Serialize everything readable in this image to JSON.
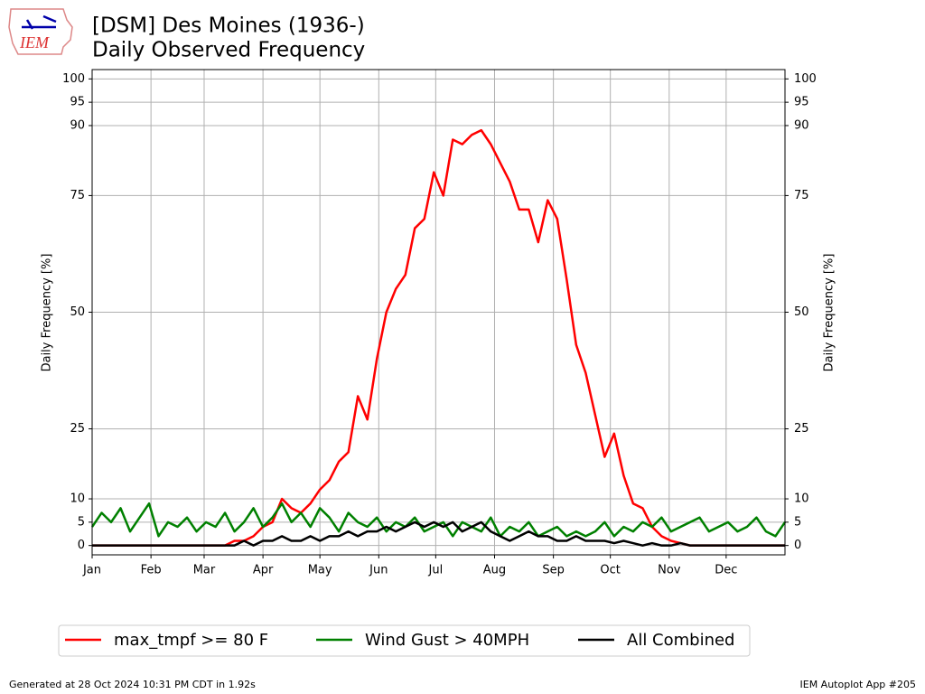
{
  "logo_text": "IEM",
  "footer": {
    "left": "Generated at 28 Oct 2024 10:31 PM CDT in 1.92s",
    "right": "IEM Autoplot App #205"
  },
  "chart_data": {
    "type": "line",
    "title": "[DSM] Des Moines (1936-)",
    "subtitle": "Daily Observed Frequency",
    "ylabel": "Daily Frequency [%]",
    "y2label": "Daily Frequency [%]",
    "x": [
      1,
      6,
      11,
      16,
      21,
      26,
      31,
      36,
      41,
      46,
      51,
      56,
      61,
      66,
      71,
      76,
      81,
      86,
      91,
      96,
      101,
      106,
      111,
      116,
      121,
      126,
      131,
      136,
      141,
      146,
      151,
      156,
      161,
      166,
      171,
      176,
      181,
      186,
      191,
      196,
      201,
      206,
      211,
      216,
      221,
      226,
      231,
      236,
      241,
      246,
      251,
      256,
      261,
      266,
      271,
      276,
      281,
      286,
      291,
      296,
      301,
      306,
      311,
      316,
      321,
      326,
      331,
      336,
      341,
      346,
      351,
      356,
      361,
      366
    ],
    "xlim": [
      1,
      366
    ],
    "xticks": [
      {
        "value": 1,
        "label": "Jan"
      },
      {
        "value": 32,
        "label": "Feb"
      },
      {
        "value": 60,
        "label": "Mar"
      },
      {
        "value": 91,
        "label": "Apr"
      },
      {
        "value": 121,
        "label": "May"
      },
      {
        "value": 152,
        "label": "Jun"
      },
      {
        "value": 182,
        "label": "Jul"
      },
      {
        "value": 213,
        "label": "Aug"
      },
      {
        "value": 244,
        "label": "Sep"
      },
      {
        "value": 274,
        "label": "Oct"
      },
      {
        "value": 305,
        "label": "Nov"
      },
      {
        "value": 335,
        "label": "Dec"
      }
    ],
    "ylim": [
      -2,
      102
    ],
    "yticks": [
      0,
      5,
      10,
      25,
      50,
      75,
      90,
      95,
      100
    ],
    "y2lim": [
      -2,
      102
    ],
    "y2ticks": [
      0,
      5,
      10,
      25,
      50,
      75,
      90,
      95,
      100
    ],
    "grid": true,
    "legend": "bottom",
    "series": [
      {
        "name": "max_tmpf >= 80 F",
        "color": "#ff0000",
        "values": [
          0,
          0,
          0,
          0,
          0,
          0,
          0,
          0,
          0,
          0,
          0,
          0,
          0,
          0,
          0,
          1,
          1,
          2,
          4,
          5,
          10,
          8,
          7,
          9,
          12,
          14,
          18,
          20,
          32,
          27,
          40,
          50,
          55,
          58,
          68,
          70,
          80,
          75,
          87,
          86,
          88,
          89,
          86,
          82,
          78,
          72,
          72,
          65,
          74,
          70,
          57,
          43,
          37,
          28,
          19,
          24,
          15,
          9,
          8,
          4,
          2,
          1,
          0.5,
          0,
          0,
          0,
          0,
          0,
          0,
          0,
          0,
          0,
          0,
          0
        ]
      },
      {
        "name": "Wind Gust > 40MPH",
        "color": "#008000",
        "values": [
          4,
          7,
          5,
          8,
          3,
          6,
          9,
          2,
          5,
          4,
          6,
          3,
          5,
          4,
          7,
          3,
          5,
          8,
          4,
          6,
          9,
          5,
          7,
          4,
          8,
          6,
          3,
          7,
          5,
          4,
          6,
          3,
          5,
          4,
          6,
          3,
          4,
          5,
          2,
          5,
          4,
          3,
          6,
          2,
          4,
          3,
          5,
          2,
          3,
          4,
          2,
          3,
          2,
          3,
          5,
          2,
          4,
          3,
          5,
          4,
          6,
          3,
          4,
          5,
          6,
          3,
          4,
          5,
          3,
          4,
          6,
          3,
          2,
          5
        ]
      },
      {
        "name": "All Combined",
        "color": "#000000",
        "values": [
          0,
          0,
          0,
          0,
          0,
          0,
          0,
          0,
          0,
          0,
          0,
          0,
          0,
          0,
          0,
          0,
          1,
          0,
          1,
          1,
          2,
          1,
          1,
          2,
          1,
          2,
          2,
          3,
          2,
          3,
          3,
          4,
          3,
          4,
          5,
          4,
          5,
          4,
          5,
          3,
          4,
          5,
          3,
          2,
          1,
          2,
          3,
          2,
          2,
          1,
          1,
          2,
          1,
          1,
          1,
          0.5,
          1,
          0.5,
          0,
          0.5,
          0,
          0,
          0.5,
          0,
          0,
          0,
          0,
          0,
          0,
          0,
          0,
          0,
          0,
          0
        ]
      }
    ]
  }
}
